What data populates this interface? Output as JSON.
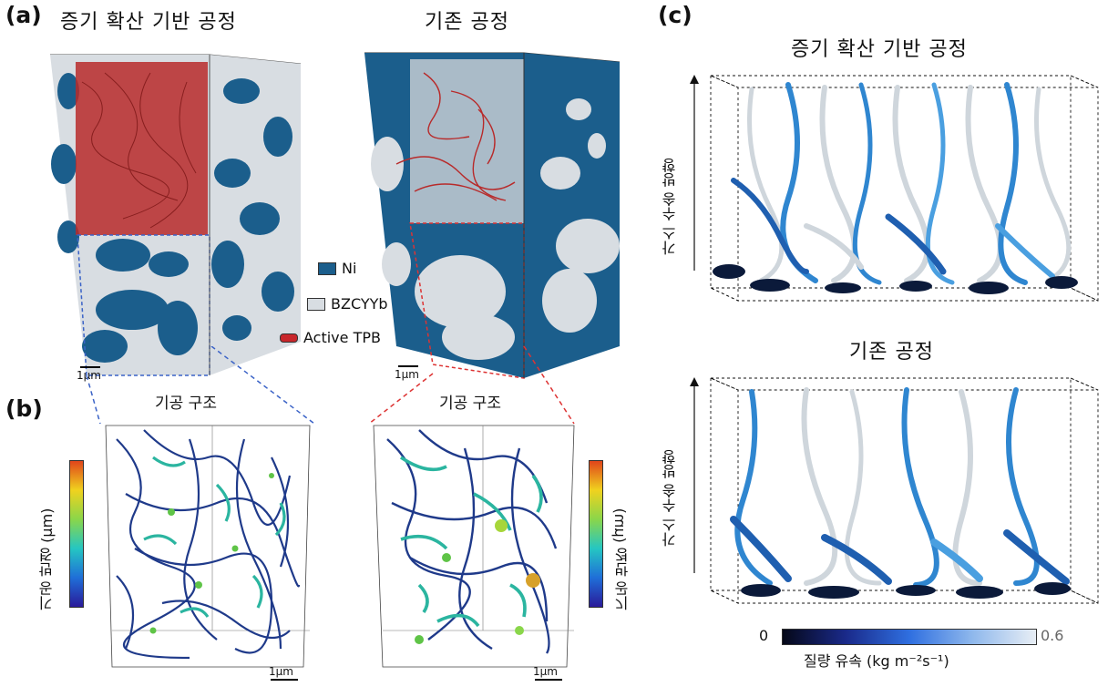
{
  "panel_a": {
    "label": "(a)",
    "title_left": "증기 확산 기반 공정",
    "title_right": "기존 공정",
    "scale_left": "1μm",
    "scale_right": "1μm"
  },
  "legend": {
    "items": [
      {
        "label": "Ni",
        "color": "#1b5e8c"
      },
      {
        "label": "BZCYYb",
        "color": "#d8dde2"
      },
      {
        "label": "Active TPB",
        "color": "#c8262b"
      }
    ]
  },
  "panel_b": {
    "label": "(b)",
    "title_left": "기공 구조",
    "title_right": "기공 구조",
    "colorbar_left": "기공 반경 (μm)",
    "colorbar_right": "기공 반경 (μm)",
    "scale_left": "1μm",
    "scale_right": "1μm"
  },
  "panel_c": {
    "label": "(c)",
    "title_top": "증기 확산 기반 공정",
    "title_bottom": "기존 공정",
    "axis_top": "가스 수송 방향",
    "axis_bottom": "가스 수송 방향",
    "colorbar_min": "0",
    "colorbar_max": "0.6",
    "colorbar_label": "질량 유속 (kg m⁻²s⁻¹)"
  },
  "colors": {
    "ni": "#1b5e8c",
    "bzcyyb": "#d8dde2",
    "tpb": "#c8262b",
    "stream_dark": "#0b1a3a",
    "stream_mid": "#2f86d0",
    "stream_light": "#cfd6dc"
  }
}
